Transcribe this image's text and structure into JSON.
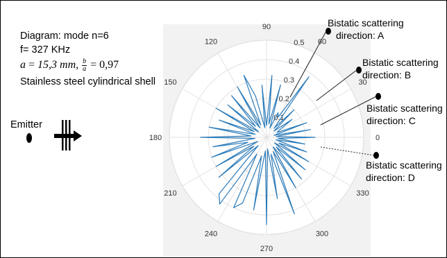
{
  "info": {
    "line1": "Diagram: mode n=6",
    "line2": "f= 327 KHz",
    "a_label": "a",
    "a_value": "15,3 mm,",
    "frac_num": "b",
    "frac_den": "a",
    "ratio_value": "= 0,97",
    "line4": "Stainless steel cylindrical shell"
  },
  "emitter_label": "Emitter",
  "callouts": [
    {
      "line1": "Bistatic scattering",
      "line2": "direction: A"
    },
    {
      "line1": "Bistatic scattering",
      "line2": "direction: B"
    },
    {
      "line1": "Bistatic scattering",
      "line2": "direction: C"
    },
    {
      "line1": "Bistatic scattering",
      "line2": "direction: D"
    }
  ],
  "chart_data": {
    "type": "line",
    "subtype": "polar",
    "r_max": 0.5,
    "r_ticks": [
      0.1,
      0.2,
      0.3,
      0.4,
      0.5
    ],
    "r_tick_labels": [
      "0.1",
      "0.2",
      "0.3",
      "0.4",
      "0.5"
    ],
    "theta_ticks": [
      0,
      30,
      60,
      90,
      120,
      150,
      180,
      210,
      240,
      270,
      300,
      330
    ],
    "theta_tick_labels": [
      "0",
      "30",
      "60",
      "90",
      "120",
      "150",
      "180",
      "210",
      "240",
      "270",
      "300",
      "330"
    ],
    "grid": true,
    "series_color": "#2b7bb9",
    "theta_deg": [
      0,
      5,
      10,
      15,
      20,
      25,
      30,
      35,
      40,
      45,
      50,
      55,
      60,
      65,
      70,
      75,
      80,
      85,
      90,
      95,
      100,
      105,
      110,
      115,
      120,
      125,
      130,
      135,
      140,
      145,
      150,
      155,
      160,
      165,
      170,
      175,
      180,
      185,
      190,
      195,
      200,
      205,
      210,
      215,
      220,
      225,
      230,
      235,
      240,
      245,
      250,
      255,
      260,
      265,
      270,
      275,
      280,
      285,
      290,
      295,
      300,
      305,
      310,
      315,
      320,
      325,
      330,
      335,
      340,
      345,
      350,
      355
    ],
    "r": [
      0.25,
      0.05,
      0.23,
      0.04,
      0.22,
      0.06,
      0.08,
      0.16,
      0.05,
      0.2,
      0.06,
      0.38,
      0.12,
      0.14,
      0.05,
      0.28,
      0.07,
      0.32,
      0.06,
      0.27,
      0.05,
      0.22,
      0.34,
      0.07,
      0.3,
      0.06,
      0.28,
      0.08,
      0.26,
      0.05,
      0.3,
      0.07,
      0.26,
      0.06,
      0.3,
      0.08,
      0.34,
      0.06,
      0.28,
      0.1,
      0.3,
      0.05,
      0.3,
      0.08,
      0.32,
      0.06,
      0.38,
      0.42,
      0.1,
      0.4,
      0.36,
      0.1,
      0.38,
      0.07,
      0.45,
      0.06,
      0.32,
      0.09,
      0.42,
      0.08,
      0.3,
      0.06,
      0.28,
      0.07,
      0.26,
      0.05,
      0.25,
      0.07,
      0.22,
      0.05,
      0.2,
      0.06
    ]
  }
}
